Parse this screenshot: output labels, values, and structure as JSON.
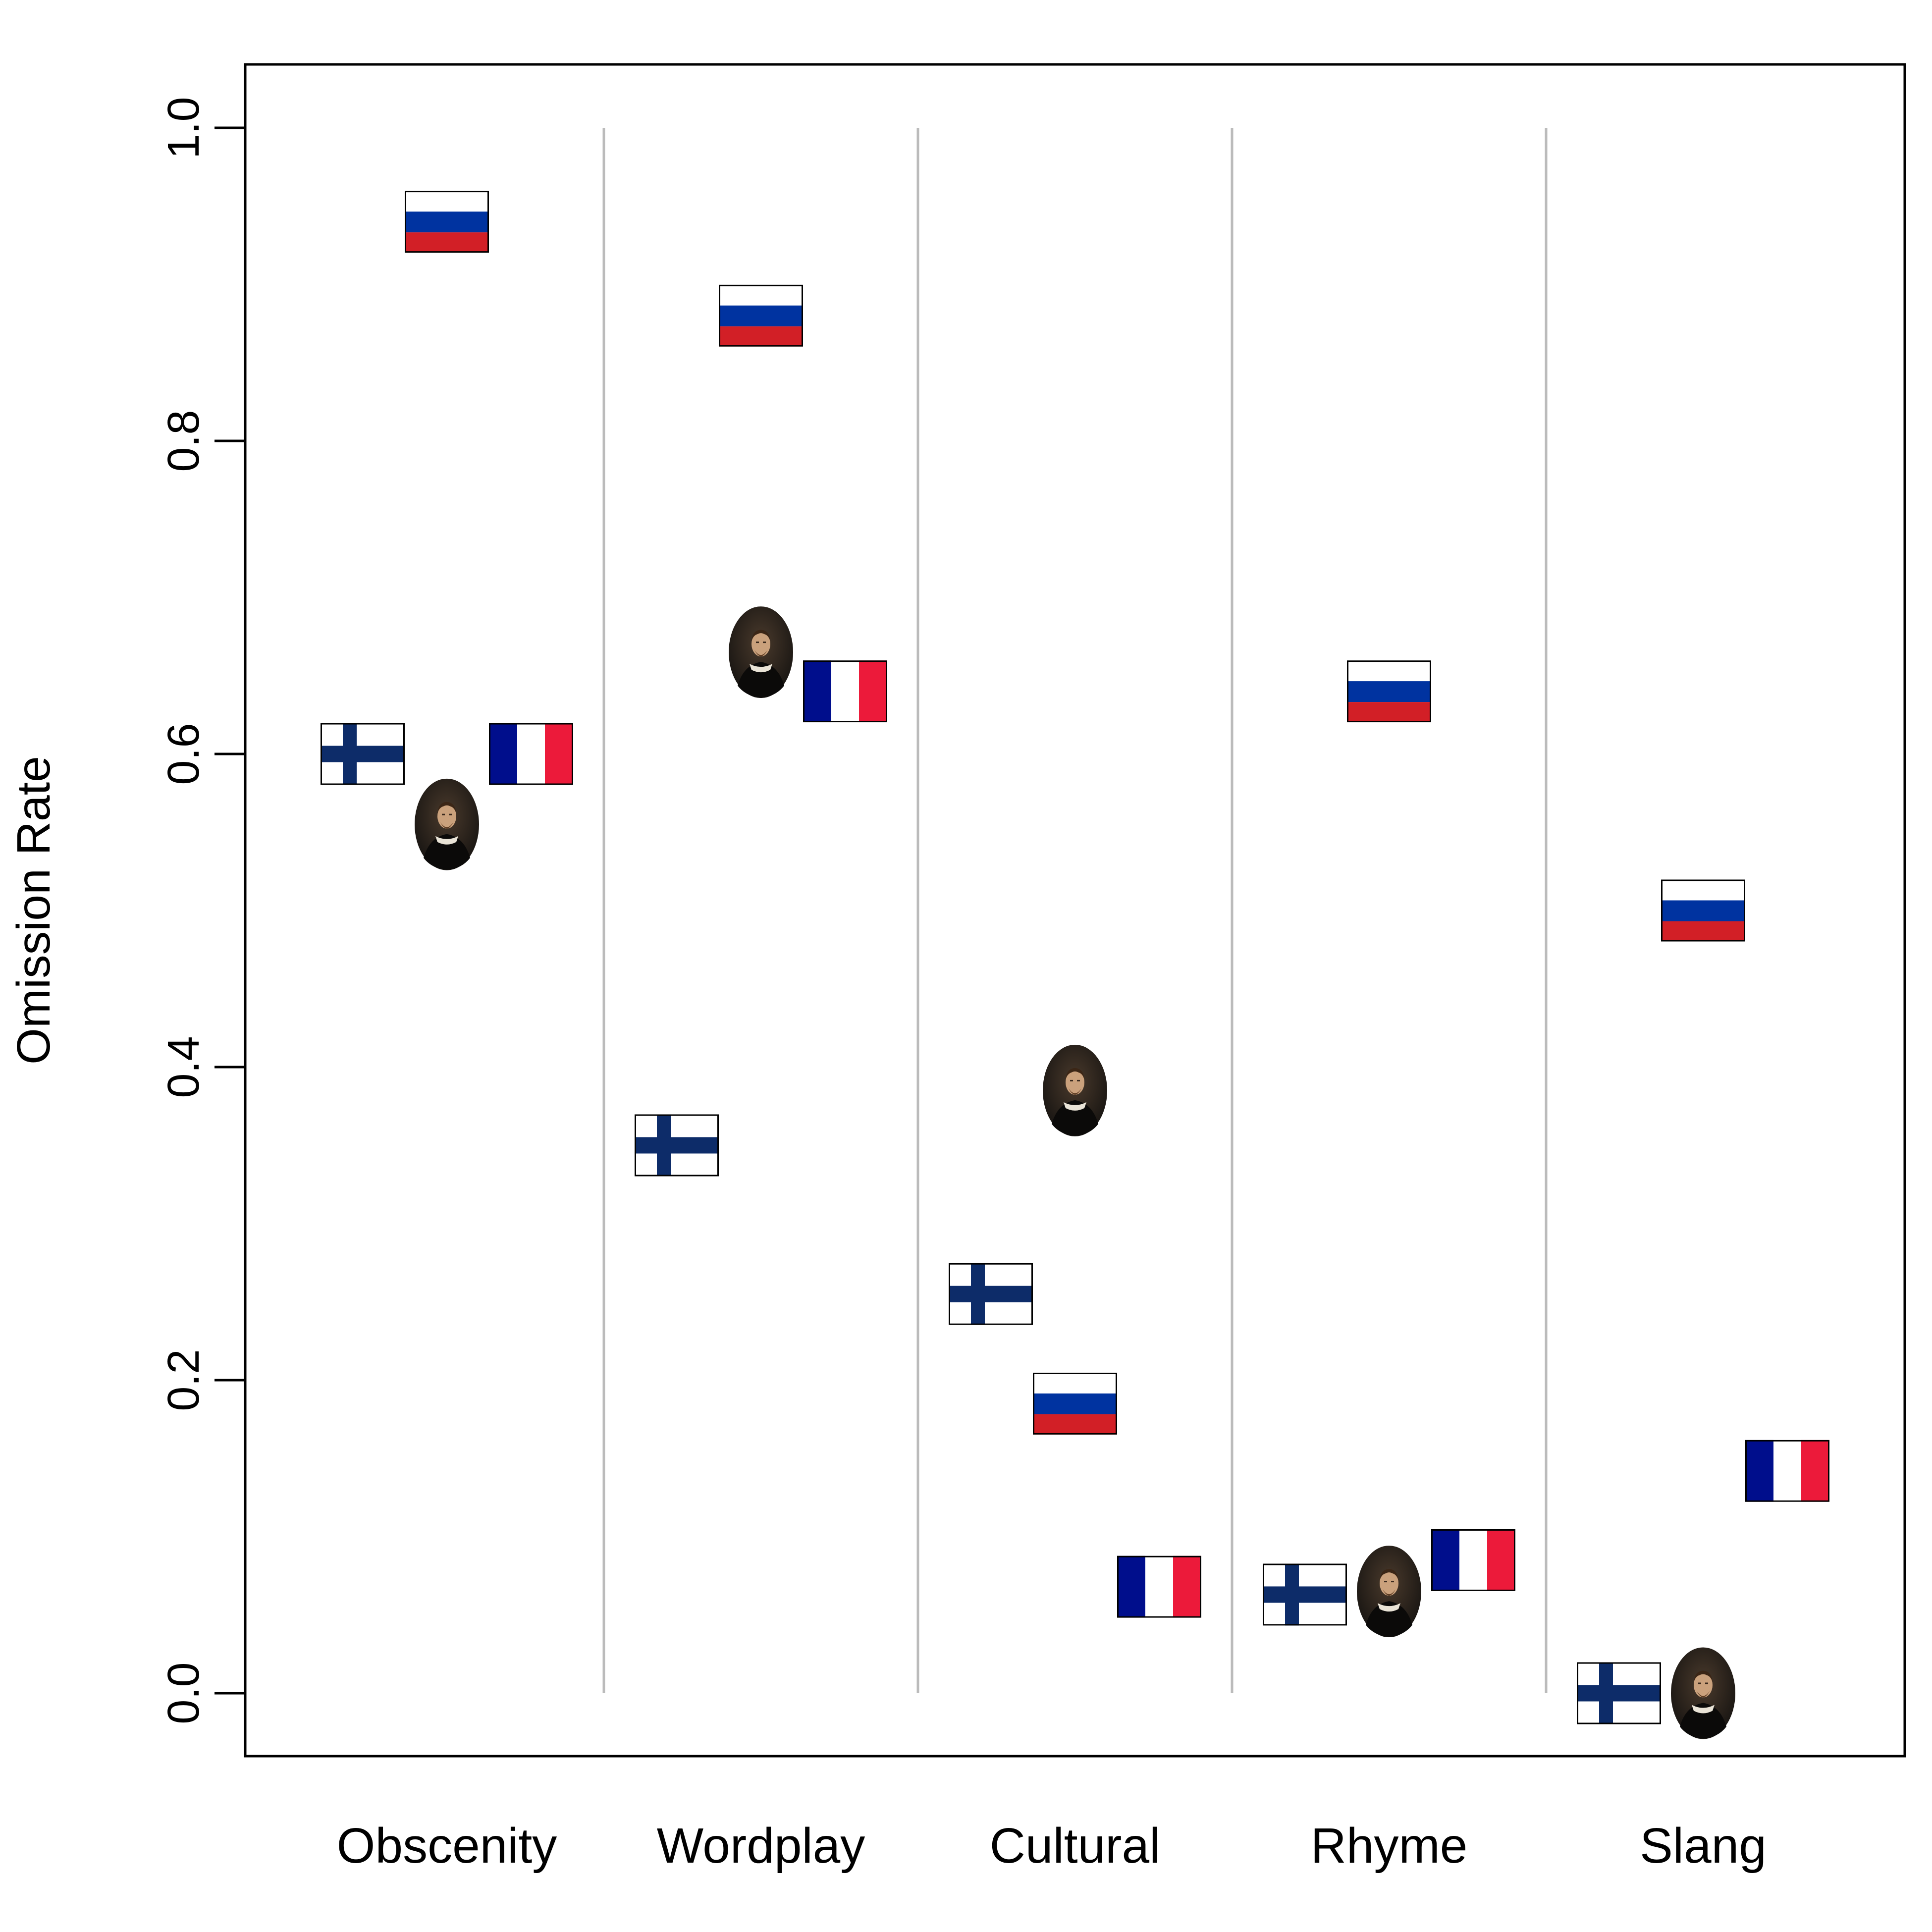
{
  "chart_data": {
    "type": "scatter",
    "title": "",
    "xlabel": "",
    "ylabel": "Omission Rate",
    "ylim": [
      -0.04,
      1.04
    ],
    "yticks": [
      0.0,
      0.2,
      0.4,
      0.6,
      0.8,
      1.0
    ],
    "ytick_labels": [
      "0.0",
      "0.2",
      "0.4",
      "0.6",
      "0.8",
      "1.0"
    ],
    "grid": false,
    "legend": "none",
    "categories": [
      "Obscenity",
      "Wordplay",
      "Cultural",
      "Rhyme",
      "Slang"
    ],
    "series": [
      {
        "marker": "finland-flag-icon",
        "values": [
          0.6,
          0.35,
          0.255,
          0.063,
          0.0
        ]
      },
      {
        "marker": "shakespeare-portrait-icon",
        "values": [
          0.555,
          0.665,
          0.385,
          0.065,
          0.0
        ]
      },
      {
        "marker": "russia-flag-icon",
        "values": [
          0.94,
          0.88,
          0.185,
          0.64,
          0.5
        ]
      },
      {
        "marker": "france-flag-icon",
        "values": [
          0.6,
          0.64,
          0.068,
          0.085,
          0.142
        ]
      }
    ],
    "colors": {
      "finland_blue": "#0d2c69",
      "russia_blue": "#0033a0",
      "russia_red": "#d21f26",
      "france_blue": "#000e8c",
      "france_red": "#ec1a3a",
      "divider": "#bbbbbb",
      "portrait_dark": "#1e1a16"
    }
  }
}
